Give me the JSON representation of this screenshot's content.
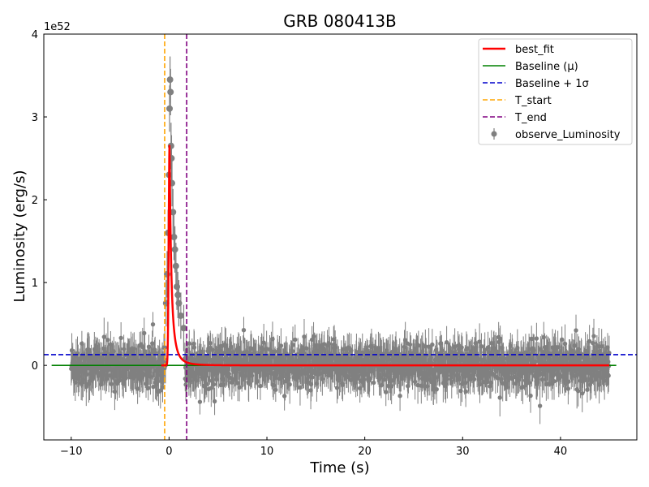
{
  "chart_data": {
    "type": "scatter",
    "title": "GRB 080413B",
    "xlabel": "Time (s)",
    "ylabel": "Luminosity (erg/s)",
    "y_scale_label": "1e52",
    "xlim": [
      -12.8,
      47.8
    ],
    "ylim": [
      -0.9,
      4.0
    ],
    "x_ticks": [
      -10,
      0,
      10,
      20,
      30,
      40
    ],
    "x_tick_labels": [
      "−10",
      "0",
      "10",
      "20",
      "30",
      "40"
    ],
    "y_ticks": [
      0,
      1,
      2,
      3,
      4
    ],
    "y_tick_labels": [
      "0",
      "1",
      "2",
      "3",
      "4"
    ],
    "grid": false,
    "legend_position": "top-right",
    "baseline": 0.0,
    "baseline_plus_1sigma": 0.13,
    "t_start": -0.45,
    "t_end": 1.8,
    "data_range": [
      -10,
      45
    ],
    "noise_sigma": 0.13,
    "errorbar_typical": 0.18,
    "peak_points": [
      {
        "x": -0.3,
        "y": 0.75
      },
      {
        "x": -0.2,
        "y": 1.1
      },
      {
        "x": -0.1,
        "y": 1.6
      },
      {
        "x": 0.0,
        "y": 2.3
      },
      {
        "x": 0.05,
        "y": 3.1
      },
      {
        "x": 0.1,
        "y": 3.45
      },
      {
        "x": 0.15,
        "y": 3.3
      },
      {
        "x": 0.2,
        "y": 2.65
      },
      {
        "x": 0.25,
        "y": 2.5
      },
      {
        "x": 0.3,
        "y": 2.2
      },
      {
        "x": 0.4,
        "y": 1.85
      },
      {
        "x": 0.5,
        "y": 1.55
      },
      {
        "x": 0.6,
        "y": 1.4
      },
      {
        "x": 0.7,
        "y": 1.2
      },
      {
        "x": 0.8,
        "y": 0.95
      },
      {
        "x": 0.9,
        "y": 0.85
      },
      {
        "x": 1.0,
        "y": 0.75
      },
      {
        "x": 1.2,
        "y": 0.6
      },
      {
        "x": 1.5,
        "y": 0.45
      }
    ],
    "series": [
      {
        "name": "best_fit",
        "color": "#ff0000",
        "style": "solid",
        "peak_time": 0.05,
        "peak_value": 2.68,
        "rise": 0.12,
        "decay": 0.55
      },
      {
        "name": "Baseline (μ)",
        "color": "#008000",
        "style": "solid"
      },
      {
        "name": "Baseline + 1σ",
        "color": "#0000cc",
        "style": "dashed"
      },
      {
        "name": "T_start",
        "color": "#ffa500",
        "style": "dashed"
      },
      {
        "name": "T_end",
        "color": "#800080",
        "style": "dashed"
      },
      {
        "name": "observe_Luminosity",
        "color": "#808080",
        "style": "errorbar-marker"
      }
    ]
  }
}
